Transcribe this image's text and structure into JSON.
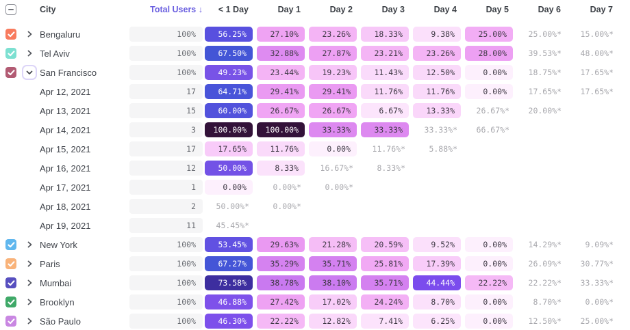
{
  "header": {
    "columns": [
      "City",
      "Total Users",
      "< 1 Day",
      "Day 1",
      "Day 2",
      "Day 3",
      "Day 4",
      "Day 5",
      "Day 6",
      "Day 7"
    ],
    "sort_arrow": "↓",
    "sorted_column": "Total Users",
    "select_all_state": "indeterminate"
  },
  "colors": {
    "accent": "#6a5fe0",
    "header_text": "#3d4147",
    "label_text": "#40444b",
    "estimate_text": "#a8a8ad",
    "cell_text_dark": "#3e3844",
    "cell_text_light": "#ffffff",
    "white_text_threshold": 42,
    "total_pill_bg": "#f5f5f6",
    "chevron_color": "#54575d",
    "expand_button_border": "#dcd5f8",
    "scale": [
      [
        0,
        "#fdf0fd"
      ],
      [
        10,
        "#fbdffb"
      ],
      [
        17,
        "#f8cdf9"
      ],
      [
        22,
        "#f5baf6"
      ],
      [
        26,
        "#f1a8f4"
      ],
      [
        30,
        "#e997f2"
      ],
      [
        34,
        "#da86f0"
      ],
      [
        39,
        "#c878f0"
      ],
      [
        44,
        "#7b4bee"
      ],
      [
        48,
        "#7f53e9"
      ],
      [
        53,
        "#6251e2"
      ],
      [
        57,
        "#5650de"
      ],
      [
        63,
        "#4d53da"
      ],
      [
        68,
        "#4255d6"
      ],
      [
        74,
        "#3d2b9b"
      ],
      [
        86,
        "#381a66"
      ],
      [
        100,
        "#331239"
      ]
    ]
  },
  "rows": [
    {
      "type": "city",
      "label": "Bengaluru",
      "checkbox_color": "#f87b5e",
      "checked": true,
      "chevron": "collapsed",
      "total": "100%",
      "cells": [
        {
          "text": "56.25%",
          "value": 56.25
        },
        {
          "text": "27.10%",
          "value": 27.1
        },
        {
          "text": "23.26%",
          "value": 23.26
        },
        {
          "text": "18.33%",
          "value": 18.33
        },
        {
          "text": "9.38%",
          "value": 9.38
        },
        {
          "text": "25.00%",
          "value": 25.0
        },
        {
          "text": "25.00%*",
          "estimate": true
        },
        {
          "text": "15.00%*",
          "estimate": true
        }
      ]
    },
    {
      "type": "city",
      "label": "Tel Aviv",
      "checkbox_color": "#7de0d1",
      "checked": true,
      "chevron": "collapsed",
      "total": "100%",
      "cells": [
        {
          "text": "67.50%",
          "value": 67.5
        },
        {
          "text": "32.88%",
          "value": 32.88
        },
        {
          "text": "27.87%",
          "value": 27.87
        },
        {
          "text": "23.21%",
          "value": 23.21
        },
        {
          "text": "23.26%",
          "value": 23.26
        },
        {
          "text": "28.00%",
          "value": 28.0
        },
        {
          "text": "39.53%*",
          "estimate": true
        },
        {
          "text": "48.00%*",
          "estimate": true
        }
      ]
    },
    {
      "type": "city",
      "label": "San Francisco",
      "checkbox_color": "#b25b73",
      "checked": true,
      "chevron": "expanded",
      "total": "100%",
      "cells": [
        {
          "text": "49.23%",
          "value": 49.23
        },
        {
          "text": "23.44%",
          "value": 23.44
        },
        {
          "text": "19.23%",
          "value": 19.23
        },
        {
          "text": "11.43%",
          "value": 11.43
        },
        {
          "text": "12.50%",
          "value": 12.5
        },
        {
          "text": "0.00%",
          "value": 0.0
        },
        {
          "text": "18.75%*",
          "estimate": true
        },
        {
          "text": "17.65%*",
          "estimate": true
        }
      ]
    },
    {
      "type": "date",
      "label": "Apr 12, 2021",
      "total": "17",
      "cells": [
        {
          "text": "64.71%",
          "value": 64.71
        },
        {
          "text": "29.41%",
          "value": 29.41
        },
        {
          "text": "29.41%",
          "value": 29.41
        },
        {
          "text": "11.76%",
          "value": 11.76
        },
        {
          "text": "11.76%",
          "value": 11.76
        },
        {
          "text": "0.00%",
          "value": 0.0
        },
        {
          "text": "17.65%*",
          "estimate": true
        },
        {
          "text": "17.65%*",
          "estimate": true
        }
      ]
    },
    {
      "type": "date",
      "label": "Apr 13, 2021",
      "total": "15",
      "cells": [
        {
          "text": "60.00%",
          "value": 60.0
        },
        {
          "text": "26.67%",
          "value": 26.67
        },
        {
          "text": "26.67%",
          "value": 26.67
        },
        {
          "text": "6.67%",
          "value": 6.67
        },
        {
          "text": "13.33%",
          "value": 13.33
        },
        {
          "text": "26.67%*",
          "estimate": true
        },
        {
          "text": "20.00%*",
          "estimate": true
        },
        null
      ]
    },
    {
      "type": "date",
      "label": "Apr 14, 2021",
      "total": "3",
      "cells": [
        {
          "text": "100.00%",
          "value": 100.0
        },
        {
          "text": "100.00%",
          "value": 100.0
        },
        {
          "text": "33.33%",
          "value": 33.33
        },
        {
          "text": "33.33%",
          "value": 33.33
        },
        {
          "text": "33.33%*",
          "estimate": true
        },
        {
          "text": "66.67%*",
          "estimate": true
        },
        null,
        null
      ]
    },
    {
      "type": "date",
      "label": "Apr 15, 2021",
      "total": "17",
      "cells": [
        {
          "text": "17.65%",
          "value": 17.65
        },
        {
          "text": "11.76%",
          "value": 11.76
        },
        {
          "text": "0.00%",
          "value": 0.0
        },
        {
          "text": "11.76%*",
          "estimate": true
        },
        {
          "text": "5.88%*",
          "estimate": true
        },
        null,
        null,
        null
      ]
    },
    {
      "type": "date",
      "label": "Apr 16, 2021",
      "total": "12",
      "cells": [
        {
          "text": "50.00%",
          "value": 50.0
        },
        {
          "text": "8.33%",
          "value": 8.33
        },
        {
          "text": "16.67%*",
          "estimate": true
        },
        {
          "text": "8.33%*",
          "estimate": true
        },
        null,
        null,
        null,
        null
      ]
    },
    {
      "type": "date",
      "label": "Apr 17, 2021",
      "total": "1",
      "cells": [
        {
          "text": "0.00%",
          "value": 0.0
        },
        {
          "text": "0.00%*",
          "estimate": true
        },
        {
          "text": "0.00%*",
          "estimate": true
        },
        null,
        null,
        null,
        null,
        null
      ]
    },
    {
      "type": "date",
      "label": "Apr 18, 2021",
      "total": "2",
      "cells": [
        {
          "text": "50.00%*",
          "estimate": true
        },
        {
          "text": "0.00%*",
          "estimate": true
        },
        null,
        null,
        null,
        null,
        null,
        null
      ]
    },
    {
      "type": "date",
      "label": "Apr 19, 2021",
      "total": "11",
      "cells": [
        {
          "text": "45.45%*",
          "estimate": true
        },
        null,
        null,
        null,
        null,
        null,
        null,
        null
      ]
    },
    {
      "type": "city",
      "label": "New York",
      "checkbox_color": "#60b7ee",
      "checked": true,
      "chevron": "collapsed",
      "total": "100%",
      "cells": [
        {
          "text": "53.45%",
          "value": 53.45
        },
        {
          "text": "29.63%",
          "value": 29.63
        },
        {
          "text": "21.28%",
          "value": 21.28
        },
        {
          "text": "20.59%",
          "value": 20.59
        },
        {
          "text": "9.52%",
          "value": 9.52
        },
        {
          "text": "0.00%",
          "value": 0.0
        },
        {
          "text": "14.29%*",
          "estimate": true
        },
        {
          "text": "9.09%*",
          "estimate": true
        }
      ]
    },
    {
      "type": "city",
      "label": "Paris",
      "checkbox_color": "#f9b37a",
      "checked": true,
      "chevron": "collapsed",
      "total": "100%",
      "cells": [
        {
          "text": "67.27%",
          "value": 67.27
        },
        {
          "text": "35.29%",
          "value": 35.29
        },
        {
          "text": "35.71%",
          "value": 35.71
        },
        {
          "text": "25.81%",
          "value": 25.81
        },
        {
          "text": "17.39%",
          "value": 17.39
        },
        {
          "text": "0.00%",
          "value": 0.0
        },
        {
          "text": "26.09%*",
          "estimate": true
        },
        {
          "text": "30.77%*",
          "estimate": true
        }
      ]
    },
    {
      "type": "city",
      "label": "Mumbai",
      "checkbox_color": "#574fbf",
      "checked": true,
      "chevron": "collapsed",
      "total": "100%",
      "cells": [
        {
          "text": "73.58%",
          "value": 73.58
        },
        {
          "text": "38.78%",
          "value": 38.78
        },
        {
          "text": "38.10%",
          "value": 38.1
        },
        {
          "text": "35.71%",
          "value": 35.71
        },
        {
          "text": "44.44%",
          "value": 44.44
        },
        {
          "text": "22.22%",
          "value": 22.22
        },
        {
          "text": "22.22%*",
          "estimate": true
        },
        {
          "text": "33.33%*",
          "estimate": true
        }
      ]
    },
    {
      "type": "city",
      "label": "Brooklyn",
      "checkbox_color": "#3fa968",
      "checked": true,
      "chevron": "collapsed",
      "total": "100%",
      "cells": [
        {
          "text": "46.88%",
          "value": 46.88
        },
        {
          "text": "27.42%",
          "value": 27.42
        },
        {
          "text": "17.02%",
          "value": 17.02
        },
        {
          "text": "24.24%",
          "value": 24.24
        },
        {
          "text": "8.70%",
          "value": 8.7
        },
        {
          "text": "0.00%",
          "value": 0.0
        },
        {
          "text": "8.70%*",
          "estimate": true
        },
        {
          "text": "0.00%*",
          "estimate": true
        }
      ]
    },
    {
      "type": "city",
      "label": "São Paulo",
      "checkbox_color": "#c987e2",
      "checked": true,
      "chevron": "collapsed",
      "total": "100%",
      "cells": [
        {
          "text": "46.30%",
          "value": 46.3
        },
        {
          "text": "22.22%",
          "value": 22.22
        },
        {
          "text": "12.82%",
          "value": 12.82
        },
        {
          "text": "7.41%",
          "value": 7.41
        },
        {
          "text": "6.25%",
          "value": 6.25
        },
        {
          "text": "0.00%",
          "value": 0.0
        },
        {
          "text": "12.50%*",
          "estimate": true
        },
        {
          "text": "25.00%*",
          "estimate": true
        }
      ]
    }
  ]
}
